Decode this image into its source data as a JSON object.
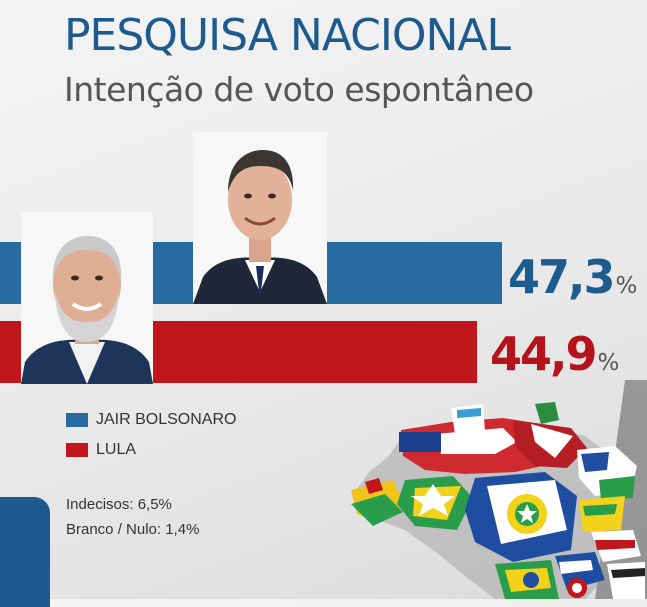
{
  "header": {
    "title": "PESQUISA NACIONAL",
    "subtitle": "Intenção de voto espontâneo"
  },
  "chart_data": {
    "type": "bar",
    "orientation": "horizontal",
    "title": "PESQUISA NACIONAL",
    "subtitle": "Intenção de voto espontâneo",
    "categories": [
      "JAIR BOLSONARO",
      "LULA"
    ],
    "values": [
      47.3,
      44.9
    ],
    "value_labels": [
      "47,3",
      "44,9"
    ],
    "unit": "%",
    "colors": [
      "#2a6aa2",
      "#c0161c"
    ],
    "legend_placement": "bottom-left",
    "grid": false
  },
  "legend": [
    {
      "label": "JAIR BOLSONARO",
      "color": "#2a6aa2"
    },
    {
      "label": "LULA",
      "color": "#c0161c"
    }
  ],
  "notes": {
    "undecided": "Indecisos: 6,5%",
    "blank_null": "Branco / Nulo: 1,4%"
  },
  "colors": {
    "brand_blue": "#1d5a8e",
    "bar_blue": "#2a6aa2",
    "bar_red": "#c0161c",
    "value_blue": "#1d5a8e",
    "value_red": "#b5121b"
  },
  "icons": {
    "bolsonaro_photo": "candidate-portrait",
    "lula_photo": "candidate-portrait",
    "map": "brazil-states-flags-map"
  }
}
